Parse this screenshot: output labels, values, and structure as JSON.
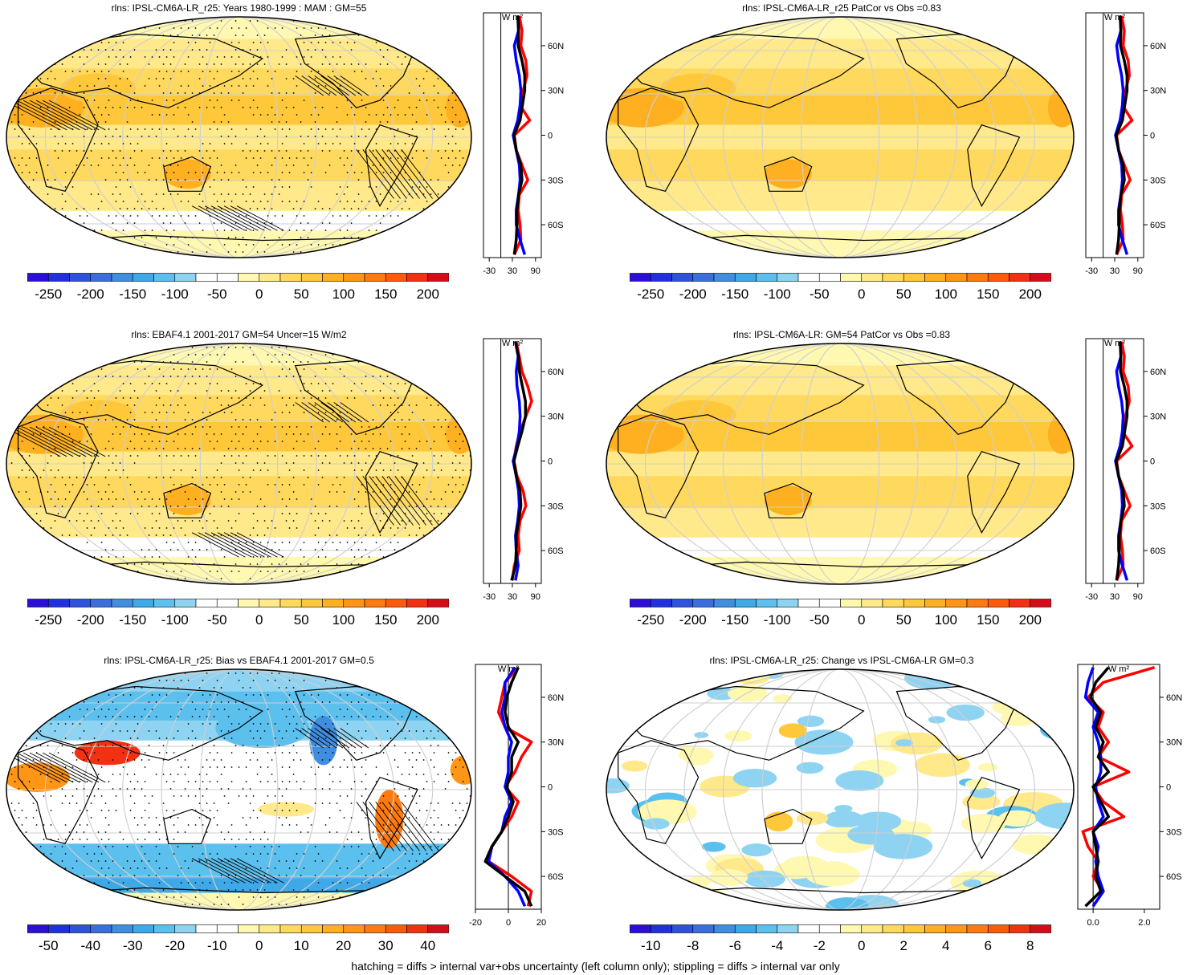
{
  "footer": "hatching = diffs > internal var+obs uncertainty (left column only); stippling = diffs > internal var only",
  "panels": [
    {
      "title": "rlns: IPSL-CM6A-LR_r25: Years 1980-1999 : MAM : GM=55",
      "kind": "clim",
      "hatch": true,
      "stipple": true
    },
    {
      "title": "rlns: IPSL-CM6A-LR_r25 PatCor vs Obs =0.83",
      "kind": "clim",
      "hatch": false,
      "stipple": false
    },
    {
      "title": "rlns: EBAF4.1 2001-2017 GM=54 Uncer=15 W/m2",
      "kind": "clim",
      "hatch": true,
      "stipple": true
    },
    {
      "title": "rlns: IPSL-CM6A-LR: GM=54 PatCor vs Obs =0.83",
      "kind": "clim",
      "hatch": false,
      "stipple": false
    },
    {
      "title": "rlns: IPSL-CM6A-LR_r25: Bias vs EBAF4.1 2001-2017 GM=0.5",
      "kind": "bias",
      "hatch": true,
      "stipple": true
    },
    {
      "title": "rlns: IPSL-CM6A-LR_r25: Change vs IPSL-CM6A-LR GM=0.3",
      "kind": "change",
      "hatch": false,
      "stipple": false
    }
  ],
  "colorbars": {
    "clim": {
      "labels": [
        "-250",
        "-200",
        "-150",
        "-100",
        "-50",
        "0",
        "50",
        "100",
        "150",
        "200",
        "250"
      ]
    },
    "bias": {
      "labels": [
        "-50",
        "-40",
        "-30",
        "-20",
        "-10",
        "0",
        "10",
        "20",
        "30",
        "40",
        "50"
      ]
    },
    "change": {
      "labels": [
        "-10",
        "-8",
        "-6",
        "-4",
        "-2",
        "0",
        "2",
        "4",
        "6",
        "8",
        "10"
      ]
    }
  },
  "palette": [
    "#2b0fd8",
    "#2030e0",
    "#2d52dc",
    "#3a6fdb",
    "#3f8ee0",
    "#3fa9e8",
    "#5cc0ee",
    "#8ed4f2",
    "#ffffff",
    "#ffffff",
    "#fff8b0",
    "#ffe98a",
    "#ffd95e",
    "#ffc83a",
    "#ffb020",
    "#ff9616",
    "#ff7a10",
    "#ff5a0c",
    "#f43012",
    "#d50d1a"
  ],
  "zonal_axes": {
    "units": "W m²",
    "lat_labels": [
      "60N",
      "30N",
      "0",
      "30S",
      "60S"
    ],
    "clim_xticks": [
      "-30",
      "30",
      "90"
    ],
    "bias_xticks": [
      "-20",
      "0",
      "20"
    ],
    "change_xticks": [
      "0.0",
      "2.0"
    ]
  },
  "chart_data": [
    {
      "type": "line",
      "title": "rlns: IPSL-CM6A-LR_r25: Years 1980-1999 : MAM : GM=55 (zonal mean)",
      "x_axis": "W m-2",
      "xlim": [
        -45,
        105
      ],
      "y_axis": "latitude",
      "ylim": [
        -82,
        82
      ],
      "y": [
        80,
        70,
        60,
        50,
        40,
        30,
        20,
        10,
        0,
        -10,
        -20,
        -30,
        -40,
        -50,
        -60,
        -70,
        -80
      ],
      "series": [
        {
          "color": "#ff0000",
          "values": [
            48,
            55,
            52,
            65,
            68,
            58,
            50,
            75,
            35,
            40,
            55,
            70,
            48,
            45,
            50,
            52,
            35
          ]
        },
        {
          "color": "#0000ff",
          "values": [
            45,
            46,
            35,
            40,
            48,
            52,
            50,
            44,
            32,
            40,
            48,
            50,
            46,
            40,
            40,
            50,
            62
          ]
        },
        {
          "color": "#000000",
          "values": [
            44,
            46,
            45,
            55,
            62,
            62,
            56,
            50,
            34,
            40,
            52,
            55,
            46,
            42,
            42,
            40,
            35
          ]
        }
      ]
    },
    {
      "type": "line",
      "title": "rlns: IPSL-CM6A-LR_r25 PatCor vs Obs =0.83 (zonal mean)",
      "x_axis": "W m-2",
      "xlim": [
        -45,
        105
      ],
      "y_axis": "latitude",
      "ylim": [
        -82,
        82
      ],
      "y": [
        80,
        70,
        60,
        50,
        40,
        30,
        20,
        10,
        0,
        -10,
        -20,
        -30,
        -40,
        -50,
        -60,
        -70,
        -80
      ],
      "series": [
        {
          "color": "#ff0000",
          "values": [
            48,
            55,
            52,
            65,
            68,
            58,
            50,
            75,
            35,
            40,
            55,
            70,
            48,
            45,
            50,
            52,
            35
          ]
        },
        {
          "color": "#0000ff",
          "values": [
            45,
            46,
            35,
            40,
            48,
            52,
            50,
            44,
            32,
            40,
            48,
            50,
            46,
            40,
            40,
            50,
            62
          ]
        },
        {
          "color": "#000000",
          "values": [
            44,
            46,
            45,
            55,
            62,
            62,
            56,
            50,
            34,
            40,
            52,
            55,
            46,
            42,
            42,
            40,
            35
          ]
        }
      ]
    },
    {
      "type": "line",
      "title": "rlns: EBAF4.1 2001-2017 GM=54 Uncer=15 W/m2 (zonal mean)",
      "x_axis": "W m-2",
      "xlim": [
        -45,
        105
      ],
      "y_axis": "latitude",
      "ylim": [
        -82,
        82
      ],
      "y": [
        80,
        70,
        60,
        50,
        40,
        30,
        20,
        10,
        0,
        -10,
        -20,
        -30,
        -40,
        -50,
        -60,
        -70,
        -80
      ],
      "series": [
        {
          "color": "#ff0000",
          "values": [
            40,
            48,
            55,
            70,
            80,
            65,
            50,
            40,
            34,
            42,
            58,
            65,
            50,
            45,
            48,
            35,
            30
          ]
        },
        {
          "color": "#0000ff",
          "values": [
            38,
            45,
            40,
            42,
            48,
            50,
            48,
            42,
            32,
            40,
            46,
            48,
            44,
            38,
            40,
            45,
            38
          ]
        },
        {
          "color": "#000000",
          "values": [
            38,
            46,
            48,
            56,
            64,
            64,
            55,
            44,
            34,
            40,
            50,
            52,
            46,
            40,
            40,
            38,
            28
          ]
        }
      ]
    },
    {
      "type": "line",
      "title": "rlns: IPSL-CM6A-LR: GM=54 PatCor vs Obs =0.83 (zonal mean)",
      "x_axis": "W m-2",
      "xlim": [
        -45,
        105
      ],
      "y_axis": "latitude",
      "ylim": [
        -82,
        82
      ],
      "y": [
        80,
        70,
        60,
        50,
        40,
        30,
        20,
        10,
        0,
        -10,
        -20,
        -30,
        -40,
        -50,
        -60,
        -70,
        -80
      ],
      "series": [
        {
          "color": "#ff0000",
          "values": [
            48,
            55,
            52,
            65,
            68,
            58,
            50,
            75,
            35,
            40,
            55,
            70,
            48,
            45,
            50,
            52,
            35
          ]
        },
        {
          "color": "#0000ff",
          "values": [
            45,
            46,
            35,
            40,
            48,
            52,
            50,
            44,
            32,
            40,
            48,
            50,
            46,
            40,
            40,
            50,
            62
          ]
        },
        {
          "color": "#000000",
          "values": [
            44,
            46,
            45,
            55,
            62,
            62,
            56,
            50,
            34,
            40,
            52,
            55,
            46,
            42,
            42,
            40,
            35
          ]
        }
      ]
    },
    {
      "type": "line",
      "title": "rlns: IPSL-CM6A-LR_r25: Bias vs EBAF4.1 2001-2017 GM=0.5 (zonal mean)",
      "x_axis": "W m-2",
      "xlim": [
        -20,
        20
      ],
      "y_axis": "latitude",
      "ylim": [
        -82,
        82
      ],
      "y": [
        80,
        70,
        60,
        50,
        40,
        30,
        20,
        10,
        0,
        -10,
        -20,
        -30,
        -40,
        -50,
        -60,
        -70,
        -80
      ],
      "series": [
        {
          "color": "#ff0000",
          "values": [
            6,
            -2,
            -4,
            -6,
            -2,
            14,
            8,
            4,
            -2,
            6,
            2,
            -4,
            -10,
            -12,
            2,
            14,
            12
          ]
        },
        {
          "color": "#0000ff",
          "values": [
            4,
            -2,
            -2,
            -4,
            -2,
            2,
            0,
            0,
            -2,
            2,
            -2,
            -4,
            -10,
            -12,
            -2,
            6,
            10
          ]
        },
        {
          "color": "#000000",
          "values": [
            6,
            2,
            -1,
            -2,
            0,
            6,
            2,
            2,
            -1,
            3,
            0,
            -4,
            -10,
            -14,
            -2,
            10,
            14
          ]
        }
      ]
    },
    {
      "type": "line",
      "title": "rlns: IPSL-CM6A-LR_r25: Change vs IPSL-CM6A-LR GM=0.3 (zonal mean)",
      "x_axis": "W m-2",
      "xlim": [
        -0.6,
        2.6
      ],
      "y_axis": "latitude",
      "ylim": [
        -82,
        82
      ],
      "y": [
        80,
        70,
        60,
        50,
        40,
        30,
        20,
        10,
        0,
        -10,
        -20,
        -30,
        -40,
        -50,
        -60,
        -70,
        -80
      ],
      "series": [
        {
          "color": "#ff0000",
          "values": [
            2.4,
            0.4,
            -0.2,
            0.4,
            0.2,
            0.6,
            0.2,
            1.4,
            0.0,
            0.4,
            1.2,
            -0.4,
            -0.2,
            0.2,
            0.0,
            0.4,
            0.0
          ]
        },
        {
          "color": "#0000ff",
          "values": [
            0.0,
            -0.2,
            -0.3,
            0.2,
            0.0,
            0.2,
            0.3,
            0.3,
            0.1,
            0.2,
            0.4,
            0.0,
            0.2,
            0.1,
            0.2,
            0.4,
            0.0
          ]
        },
        {
          "color": "#000000",
          "values": [
            0.6,
            0.1,
            -0.1,
            0.3,
            0.1,
            0.4,
            0.2,
            0.6,
            0.0,
            0.3,
            0.6,
            0.0,
            0.1,
            0.2,
            0.1,
            0.3,
            -0.3
          ]
        }
      ]
    }
  ]
}
